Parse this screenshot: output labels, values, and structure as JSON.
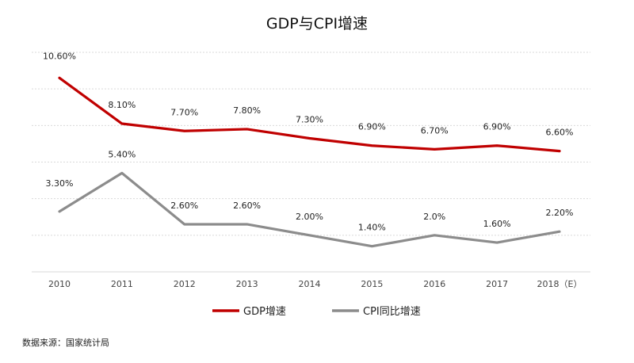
{
  "chart_data": {
    "type": "line",
    "title": "GDP与CPI增速",
    "xlabel": "",
    "ylabel": "",
    "ylim": [
      0,
      12
    ],
    "grid": true,
    "legend_position": "bottom",
    "categories": [
      "2010",
      "2011",
      "2012",
      "2013",
      "2014",
      "2015",
      "2016",
      "2017",
      "2018（E）"
    ],
    "series": [
      {
        "name": "GDP增速",
        "color": "#c00000",
        "values": [
          10.6,
          8.1,
          7.7,
          7.8,
          7.3,
          6.9,
          6.7,
          6.9,
          6.6
        ],
        "labels": [
          "10.60%",
          "8.10%",
          "7.70%",
          "7.80%",
          "7.30%",
          "6.90%",
          "6.70%",
          "6.90%",
          "6.60%"
        ]
      },
      {
        "name": "CPI同比增速",
        "color": "#8c8c8c",
        "values": [
          3.3,
          5.4,
          2.6,
          2.6,
          2.0,
          1.4,
          2.0,
          1.6,
          2.2
        ],
        "labels": [
          "3.30%",
          "5.40%",
          "2.60%",
          "2.60%",
          "2.00%",
          "1.40%",
          "2.0%",
          "1.60%",
          "2.20%"
        ]
      }
    ],
    "source": "数据来源：国家统计局"
  }
}
